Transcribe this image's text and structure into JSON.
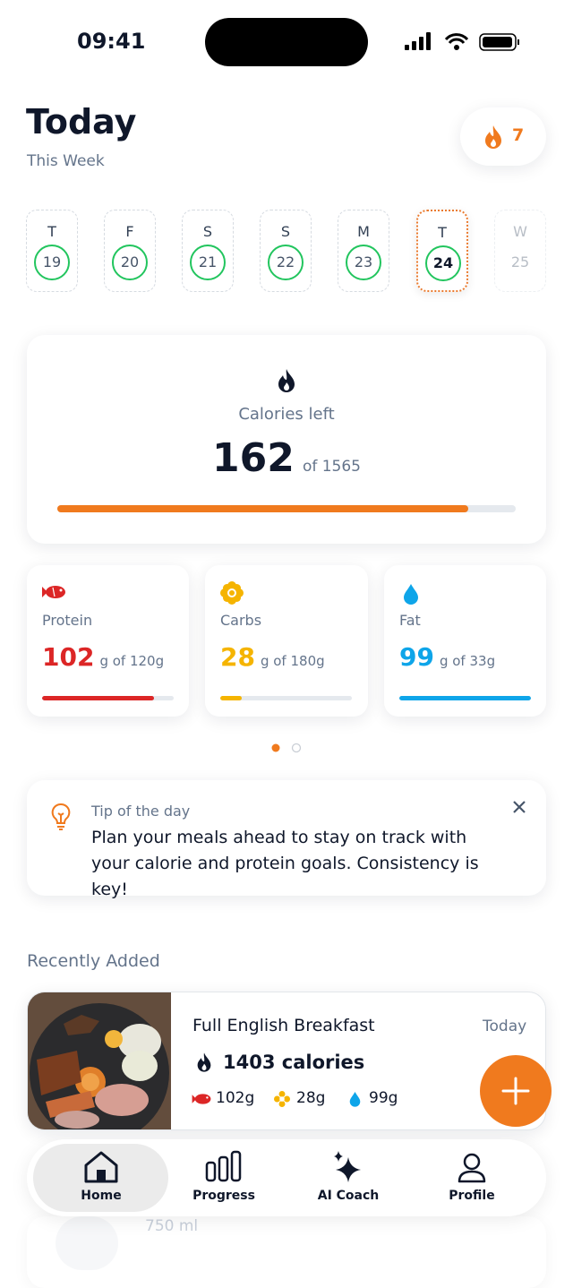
{
  "status": {
    "time": "09:41"
  },
  "header": {
    "title": "Today",
    "subtitle": "This Week",
    "streak": "7"
  },
  "week": {
    "days": [
      {
        "letter": "T",
        "date": "19"
      },
      {
        "letter": "F",
        "date": "20"
      },
      {
        "letter": "S",
        "date": "21"
      },
      {
        "letter": "S",
        "date": "22"
      },
      {
        "letter": "M",
        "date": "23"
      },
      {
        "letter": "T",
        "date": "24"
      },
      {
        "letter": "W",
        "date": "25"
      }
    ]
  },
  "calories": {
    "label": "Calories left",
    "value": "162",
    "total": "of 1565"
  },
  "macros": [
    {
      "label": "Protein",
      "value": "102",
      "unit": "g of 120g"
    },
    {
      "label": "Carbs",
      "value": "28",
      "unit": "g of 180g"
    },
    {
      "label": "Fat",
      "value": "99",
      "unit": "g of 33g"
    }
  ],
  "tip": {
    "label": "Tip of the day",
    "text": "Plan your meals ahead to stay on track with your calorie and protein goals. Consistency is key!"
  },
  "recent": {
    "heading": "Recently Added",
    "items": [
      {
        "name": "Full English Breakfast",
        "time": "Today",
        "calories": "1403 calories",
        "protein": "102g",
        "carbs": "28g",
        "fat": "99g"
      },
      {
        "amount": "750 ml"
      }
    ]
  },
  "nav": [
    {
      "label": "Home"
    },
    {
      "label": "Progress"
    },
    {
      "label": "AI Coach"
    },
    {
      "label": "Profile"
    }
  ]
}
